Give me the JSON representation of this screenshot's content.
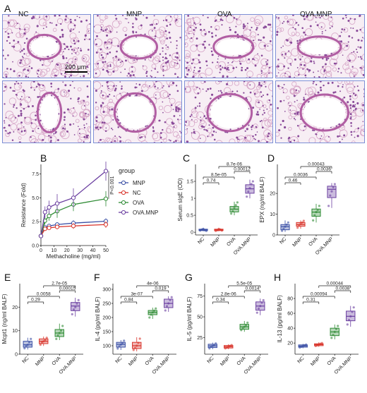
{
  "figure": {
    "panel_labels": [
      "A",
      "B",
      "C",
      "D",
      "E",
      "F",
      "G",
      "H"
    ],
    "panelA": {
      "columns": [
        "NC",
        "MNP",
        "OVA",
        "OVA.MNP"
      ],
      "scale_bar": "200 μm"
    }
  },
  "chart_data": [
    {
      "id": "B",
      "type": "line",
      "x": [
        0,
        3.125,
        6.25,
        12.5,
        25,
        50
      ],
      "xlabel": "Methacholine (mg/ml)",
      "ylabel": "Resistance (Fold)",
      "xlim": [
        0,
        50
      ],
      "ylim": [
        0,
        8.5
      ],
      "xticks": [
        0,
        10,
        20,
        30,
        40,
        50
      ],
      "yticks": [
        0.0,
        2.5,
        5.0,
        7.5
      ],
      "legend_title": "group",
      "series": [
        {
          "name": "MNP",
          "color": "#3a4fa5",
          "values": [
            1,
            1.9,
            2.05,
            2.2,
            2.35,
            2.55
          ],
          "err": [
            0.1,
            0.15,
            0.2,
            0.25,
            0.3,
            0.3
          ]
        },
        {
          "name": "NC",
          "color": "#d8332a",
          "values": [
            1,
            1.75,
            1.85,
            1.95,
            2.05,
            2.2
          ],
          "err": [
            0.1,
            0.15,
            0.2,
            0.25,
            0.3,
            0.35
          ]
        },
        {
          "name": "OVA",
          "color": "#2e8b34",
          "values": [
            1,
            2.6,
            3.1,
            3.6,
            4.3,
            4.9
          ],
          "err": [
            0.2,
            0.4,
            0.5,
            0.7,
            0.7,
            0.8
          ]
        },
        {
          "name": "OVA.MNP",
          "color": "#6b3fa0",
          "values": [
            1,
            3.5,
            4.0,
            4.4,
            5.0,
            7.8
          ],
          "err": [
            0.3,
            0.6,
            0.7,
            1.0,
            1.0,
            1.0
          ]
        }
      ],
      "annotation": "P<0.001"
    },
    {
      "id": "C",
      "type": "box",
      "categories": [
        "NC",
        "MNP",
        "OVA",
        "OVA.MNP"
      ],
      "ylabel": "Serum sIgE (OD)",
      "ylim": [
        -0.08,
        2.0
      ],
      "yticks": [
        0.0,
        0.5,
        1.0,
        1.5
      ],
      "boxes": [
        [
          0.03,
          0.05,
          0.07,
          0.09,
          0.12
        ],
        [
          0.03,
          0.05,
          0.07,
          0.09,
          0.11
        ],
        [
          0.5,
          0.6,
          0.68,
          0.76,
          0.9
        ],
        [
          1.0,
          1.15,
          1.28,
          1.4,
          1.55
        ]
      ],
      "points": [
        [
          0.05,
          0.08,
          0.1,
          0.06,
          0.04
        ],
        [
          0.04,
          0.06,
          0.1,
          0.08,
          0.05
        ],
        [
          0.55,
          0.62,
          0.72,
          0.8,
          0.88
        ],
        [
          1.05,
          1.2,
          1.3,
          1.42,
          1.5
        ]
      ],
      "comparisons": [
        {
          "a": 0,
          "b": 1,
          "label": "0.74"
        },
        {
          "a": 0,
          "b": 2,
          "label": "8.5e-05"
        },
        {
          "a": 2,
          "b": 3,
          "label": "0.00012"
        },
        {
          "a": 1,
          "b": 3,
          "label": "8.7e-06"
        }
      ]
    },
    {
      "id": "D",
      "type": "box",
      "categories": [
        "NC",
        "MNP",
        "OVA",
        "OVA.MNP"
      ],
      "ylabel": "EPX (ng/ml BALF)",
      "ylim": [
        0,
        34
      ],
      "yticks": [
        0,
        10,
        20
      ],
      "boxes": [
        [
          1.5,
          2.5,
          4,
          5,
          7
        ],
        [
          3,
          4.2,
          5,
          6,
          7
        ],
        [
          6,
          9,
          11,
          12.5,
          15
        ],
        [
          13,
          18,
          22,
          23.5,
          25
        ]
      ],
      "points": [
        [
          2,
          3,
          4,
          5,
          6
        ],
        [
          3.5,
          4.5,
          5.5,
          6,
          6.8
        ],
        [
          7,
          9.5,
          11,
          12,
          14
        ],
        [
          14,
          19,
          21,
          23,
          24.5
        ]
      ],
      "comparisons": [
        {
          "a": 0,
          "b": 1,
          "label": "0.46"
        },
        {
          "a": 0,
          "b": 2,
          "label": "0.0036"
        },
        {
          "a": 2,
          "b": 3,
          "label": "0.0036"
        },
        {
          "a": 1,
          "b": 3,
          "label": "0.00043"
        }
      ]
    },
    {
      "id": "E",
      "type": "box",
      "categories": [
        "NC",
        "MNP",
        "OVA",
        "OVA.MNP"
      ],
      "ylabel": "Mcpt1 (ng/ml BALF)",
      "ylim": [
        0,
        30
      ],
      "yticks": [
        0,
        10,
        20
      ],
      "boxes": [
        [
          2,
          3,
          4,
          5.5,
          7
        ],
        [
          3.5,
          4.5,
          5.5,
          6.5,
          7.5
        ],
        [
          6,
          7.5,
          9,
          10.5,
          13
        ],
        [
          16,
          18.5,
          20.5,
          22,
          24
        ]
      ],
      "points": [
        [
          2.5,
          3.5,
          4,
          5,
          6.5
        ],
        [
          4,
          5,
          5.5,
          6,
          7
        ],
        [
          6.5,
          8,
          9,
          10,
          12
        ],
        [
          17,
          19,
          20,
          21.5,
          23
        ]
      ],
      "comparisons": [
        {
          "a": 0,
          "b": 1,
          "label": "0.29"
        },
        {
          "a": 0,
          "b": 2,
          "label": "0.0058"
        },
        {
          "a": 2,
          "b": 3,
          "label": "0.00015"
        },
        {
          "a": 1,
          "b": 3,
          "label": "2.7e-05"
        }
      ]
    },
    {
      "id": "F",
      "type": "box",
      "categories": [
        "NC",
        "MNP",
        "OVA",
        "OVA.MNP"
      ],
      "ylabel": "IL-4 (pg/ml BALF)",
      "ylim": [
        70,
        320
      ],
      "yticks": [
        100,
        150,
        200,
        250,
        300
      ],
      "boxes": [
        [
          85,
          95,
          105,
          112,
          120
        ],
        [
          80,
          90,
          100,
          112,
          130
        ],
        [
          195,
          210,
          218,
          225,
          235
        ],
        [
          220,
          235,
          250,
          265,
          275
        ]
      ],
      "points": [
        [
          90,
          98,
          104,
          110,
          118
        ],
        [
          85,
          92,
          100,
          110,
          125
        ],
        [
          200,
          210,
          218,
          224,
          232
        ],
        [
          225,
          240,
          250,
          262,
          272
        ]
      ],
      "comparisons": [
        {
          "a": 0,
          "b": 1,
          "label": "0.84"
        },
        {
          "a": 0,
          "b": 2,
          "label": "3e-07"
        },
        {
          "a": 2,
          "b": 3,
          "label": "0.019"
        },
        {
          "a": 1,
          "b": 3,
          "label": "4e-06"
        }
      ]
    },
    {
      "id": "G",
      "type": "box",
      "categories": [
        "NC",
        "MNP",
        "OVA",
        "OVA.MNP"
      ],
      "ylabel": "IL-5 (pg/ml BALF)",
      "ylim": [
        5,
        90
      ],
      "yticks": [
        25,
        50,
        75
      ],
      "boxes": [
        [
          11,
          13,
          15,
          17,
          19
        ],
        [
          11,
          12.5,
          14,
          15.5,
          17
        ],
        [
          32,
          35,
          38,
          41,
          45
        ],
        [
          52,
          58,
          63,
          68,
          72
        ]
      ],
      "points": [
        [
          12,
          14,
          15,
          16,
          18
        ],
        [
          12,
          13,
          14,
          15,
          16
        ],
        [
          34,
          36,
          38,
          40,
          43
        ],
        [
          55,
          60,
          63,
          67,
          70
        ]
      ],
      "comparisons": [
        {
          "a": 0,
          "b": 1,
          "label": "0.34"
        },
        {
          "a": 0,
          "b": 2,
          "label": "2.8e-06"
        },
        {
          "a": 2,
          "b": 3,
          "label": "0.0014"
        },
        {
          "a": 1,
          "b": 3,
          "label": "5.5e-05"
        }
      ]
    },
    {
      "id": "H",
      "type": "box",
      "categories": [
        "NC",
        "MNP",
        "OVA",
        "OVA.MNP"
      ],
      "ylabel": "IL-13 (pg/ml BALF)",
      "ylim": [
        5,
        100
      ],
      "yticks": [
        20,
        40,
        60,
        80
      ],
      "boxes": [
        [
          13,
          14.5,
          16,
          17.5,
          19
        ],
        [
          15,
          16.5,
          18,
          19,
          21
        ],
        [
          25,
          30,
          35,
          40,
          45
        ],
        [
          42,
          50,
          56,
          63,
          70
        ]
      ],
      "points": [
        [
          14,
          15,
          16,
          17,
          18
        ],
        [
          16,
          17,
          18,
          19,
          20
        ],
        [
          27,
          31,
          35,
          39,
          43
        ],
        [
          45,
          51,
          56,
          62,
          68
        ]
      ],
      "comparisons": [
        {
          "a": 0,
          "b": 1,
          "label": "0.31"
        },
        {
          "a": 0,
          "b": 2,
          "label": "0.00094"
        },
        {
          "a": 2,
          "b": 3,
          "label": "0.0038"
        },
        {
          "a": 1,
          "b": 3,
          "label": "0.00044"
        }
      ]
    }
  ],
  "colors": {
    "NC": "#3a4fa5",
    "MNP": "#d8332a",
    "OVA": "#2e8b34",
    "OVA.MNP": "#6b3fa0"
  }
}
